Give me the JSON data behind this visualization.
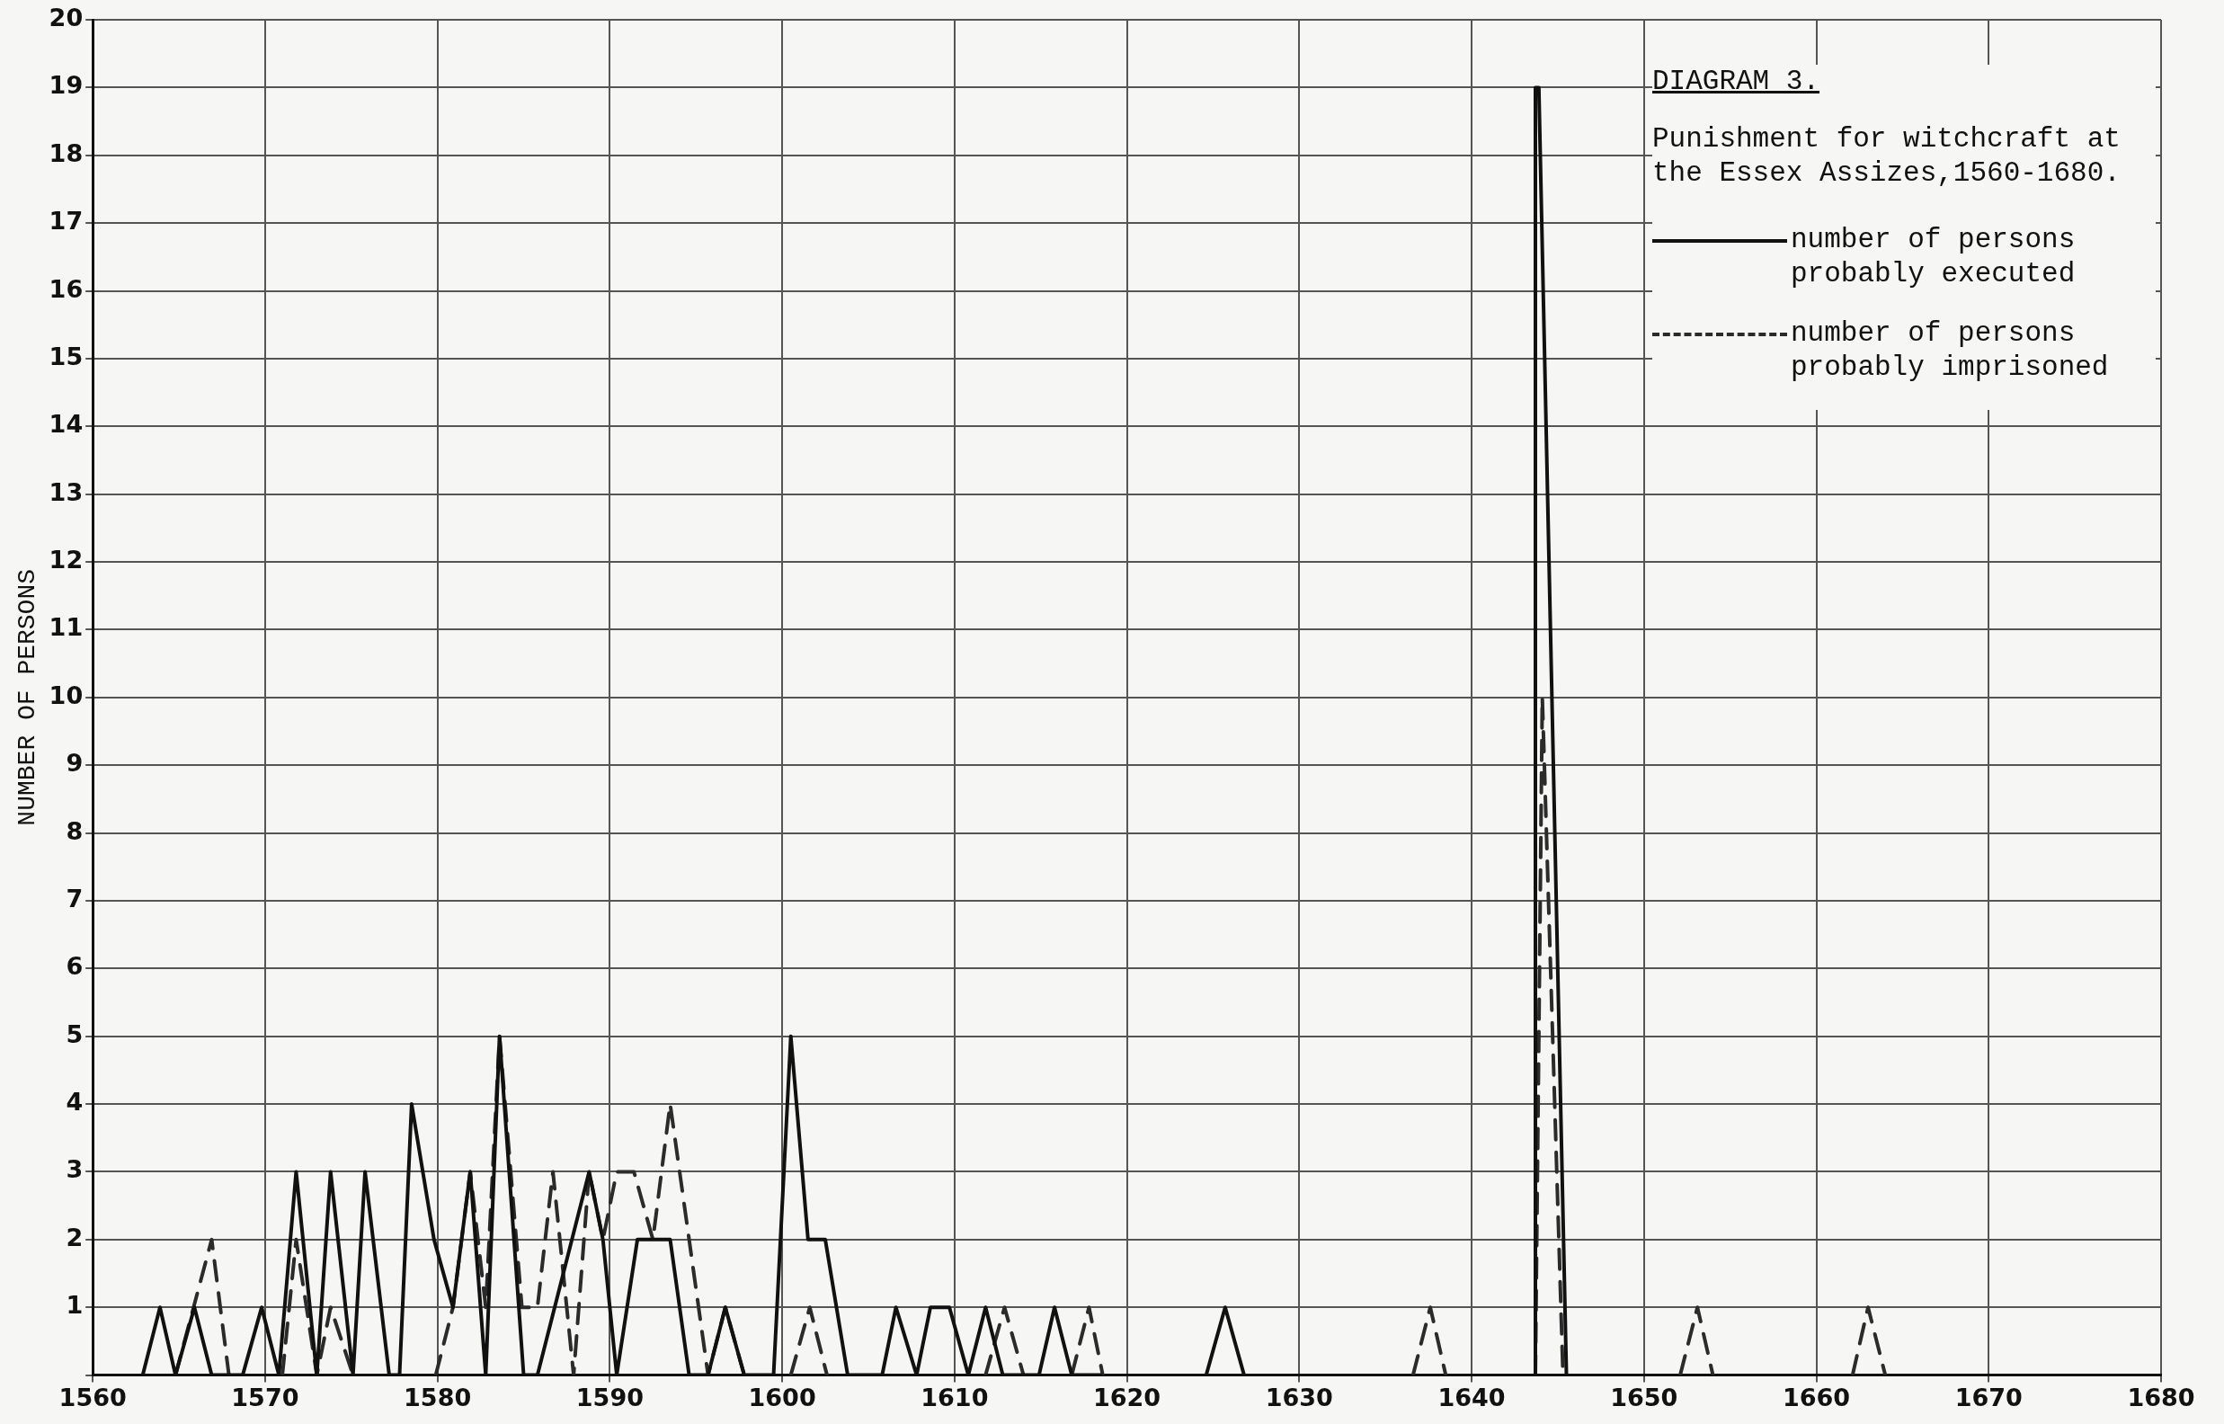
{
  "chart_data": {
    "type": "line",
    "title": "DIAGRAM 3.",
    "subtitle": "Punishment for witchcraft at the Essex Assizes,1560-1680.",
    "ylabel": "NUMBER OF PERSONS",
    "xlim": [
      1560,
      1680
    ],
    "xticks": [
      1560,
      1570,
      1580,
      1590,
      1600,
      1610,
      1620,
      1630,
      1640,
      1650,
      1660,
      1670,
      1680
    ],
    "ylim": [
      0,
      20
    ],
    "yticks": [
      {
        "value": 0,
        "label": null
      },
      1,
      2,
      3,
      4,
      5,
      6,
      7,
      8,
      9,
      10,
      11,
      12,
      13,
      14,
      15,
      16,
      17,
      18,
      19,
      20
    ],
    "grid": true,
    "legend": "top right",
    "marker": "none",
    "series": [
      {
        "name": "number of persons probably executed",
        "color": "#111111",
        "line_style": "solid",
        "x": [
          1562.9,
          1563.9,
          1564.8,
          1565.9,
          1566.9,
          1568.7,
          1569.8,
          1570.8,
          1571.8,
          1573.0,
          1573.8,
          1575.1,
          1575.8,
          1577.2,
          1577.8,
          1578.5,
          1579.8,
          1580.9,
          1581.9,
          1582.8,
          1583.6,
          1585.0,
          1585.8,
          1588.8,
          1589.6,
          1590.4,
          1591.6,
          1593.5,
          1594.6,
          1595.7,
          1596.7,
          1597.8,
          1599.5,
          1600.5,
          1601.5,
          1602.5,
          1603.8,
          1605.8,
          1606.6,
          1607.8,
          1608.6,
          1609.7,
          1610.8,
          1611.8,
          1612.8,
          1614.9,
          1615.8,
          1616.8,
          1618.5,
          1621,
          1624.6,
          1625.7,
          1626.8,
          1635,
          1643.7,
          1643.7,
          1643.9,
          1645.5
        ],
        "values": [
          0,
          1,
          0,
          1,
          0,
          0,
          1,
          0,
          3,
          0,
          3,
          0,
          3,
          0,
          0,
          4,
          2,
          1,
          3,
          0,
          5,
          0,
          0,
          3,
          2,
          0,
          2,
          2,
          0,
          0,
          1,
          0,
          0,
          5,
          2,
          2,
          0,
          0,
          1,
          0,
          1,
          1,
          0,
          1,
          0,
          0,
          1,
          0,
          0,
          null,
          0,
          1,
          0,
          null,
          0,
          19,
          19,
          0
        ]
      },
      {
        "name": "number of persons probably imprisoned",
        "color": "#2b2b2b",
        "line_style": "dashed",
        "x": [
          1564.8,
          1566.9,
          1567.9,
          1569.5,
          1571.0,
          1571.8,
          1573.0,
          1573.8,
          1575.1,
          1577.5,
          1579.9,
          1580.9,
          1581.9,
          1582.8,
          1583.6,
          1584.9,
          1585.8,
          1586.7,
          1587.9,
          1588.8,
          1589.6,
          1590.4,
          1591.4,
          1592.5,
          1593.5,
          1595.7,
          1596.7,
          1597.8,
          1599,
          1600.5,
          1601.6,
          1602.6,
          1607,
          1611.8,
          1612.9,
          1614.0,
          1615.5,
          1616.8,
          1617.8,
          1618.6,
          1627,
          1636.6,
          1637.6,
          1638.5,
          1641,
          1643.7,
          1644.1,
          1645.3,
          1648,
          1652.1,
          1653.1,
          1654.0,
          1658,
          1662.1,
          1663.0,
          1664.0
        ],
        "values": [
          0,
          2,
          0,
          null,
          0,
          2,
          0,
          1,
          0,
          null,
          0,
          1,
          3,
          1,
          5,
          1,
          1,
          3,
          0,
          3,
          2,
          3,
          3,
          2,
          4,
          0,
          1,
          0,
          null,
          0,
          1,
          0,
          null,
          0,
          1,
          0,
          null,
          0,
          1,
          0,
          null,
          0,
          1,
          0,
          null,
          0,
          10,
          0,
          null,
          0,
          1,
          0,
          null,
          0,
          1,
          0
        ]
      }
    ]
  }
}
